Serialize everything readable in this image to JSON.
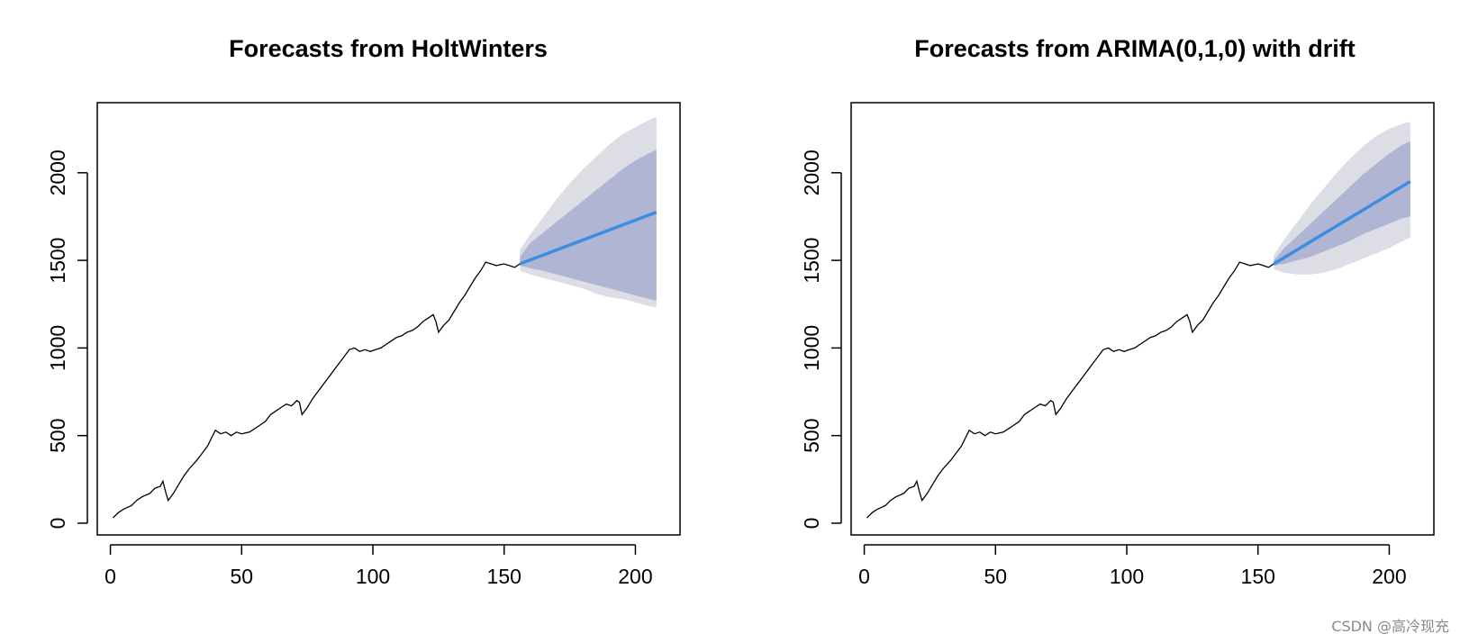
{
  "chart_data": [
    {
      "type": "line",
      "title": "Forecasts from HoltWinters",
      "xlabel": "",
      "ylabel": "",
      "xlim": [
        -5,
        217
      ],
      "ylim": [
        -67,
        2400
      ],
      "x_ticks": [
        0,
        50,
        100,
        150,
        200
      ],
      "y_ticks": [
        0,
        500,
        1000,
        1500,
        2000
      ],
      "grid": false,
      "legend": "none",
      "history": {
        "color": "#000000",
        "points": [
          [
            1,
            30
          ],
          [
            3,
            60
          ],
          [
            5,
            80
          ],
          [
            8,
            100
          ],
          [
            10,
            130
          ],
          [
            12,
            150
          ],
          [
            15,
            170
          ],
          [
            17,
            200
          ],
          [
            19,
            210
          ],
          [
            20,
            240
          ],
          [
            21,
            180
          ],
          [
            22,
            130
          ],
          [
            24,
            170
          ],
          [
            26,
            220
          ],
          [
            28,
            270
          ],
          [
            30,
            310
          ],
          [
            33,
            360
          ],
          [
            35,
            400
          ],
          [
            37,
            440
          ],
          [
            38,
            470
          ],
          [
            40,
            530
          ],
          [
            42,
            510
          ],
          [
            44,
            520
          ],
          [
            46,
            500
          ],
          [
            48,
            520
          ],
          [
            50,
            510
          ],
          [
            53,
            520
          ],
          [
            55,
            540
          ],
          [
            57,
            560
          ],
          [
            59,
            580
          ],
          [
            61,
            620
          ],
          [
            63,
            640
          ],
          [
            65,
            660
          ],
          [
            67,
            680
          ],
          [
            69,
            670
          ],
          [
            71,
            700
          ],
          [
            72,
            690
          ],
          [
            73,
            620
          ],
          [
            75,
            660
          ],
          [
            77,
            710
          ],
          [
            79,
            750
          ],
          [
            81,
            790
          ],
          [
            83,
            830
          ],
          [
            85,
            870
          ],
          [
            87,
            910
          ],
          [
            89,
            950
          ],
          [
            91,
            990
          ],
          [
            93,
            1000
          ],
          [
            95,
            980
          ],
          [
            97,
            990
          ],
          [
            99,
            980
          ],
          [
            101,
            990
          ],
          [
            103,
            1000
          ],
          [
            105,
            1020
          ],
          [
            107,
            1040
          ],
          [
            109,
            1060
          ],
          [
            111,
            1070
          ],
          [
            113,
            1090
          ],
          [
            115,
            1100
          ],
          [
            117,
            1120
          ],
          [
            119,
            1150
          ],
          [
            121,
            1170
          ],
          [
            123,
            1190
          ],
          [
            124,
            1150
          ],
          [
            125,
            1090
          ],
          [
            127,
            1130
          ],
          [
            129,
            1160
          ],
          [
            131,
            1210
          ],
          [
            133,
            1260
          ],
          [
            135,
            1300
          ],
          [
            137,
            1350
          ],
          [
            139,
            1400
          ],
          [
            141,
            1440
          ],
          [
            143,
            1490
          ],
          [
            145,
            1480
          ],
          [
            147,
            1470
          ],
          [
            150,
            1480
          ],
          [
            152,
            1470
          ],
          [
            154,
            1460
          ],
          [
            156,
            1480
          ]
        ]
      },
      "forecast": {
        "color": "#3a8de0",
        "x": [
          156,
          208
        ],
        "mean": [
          1480,
          1775
        ],
        "ci80": {
          "color": "#b1b5d4",
          "x": [
            156,
            160,
            165,
            170,
            175,
            180,
            185,
            190,
            195,
            200,
            205,
            208
          ],
          "lower": [
            1470,
            1455,
            1440,
            1420,
            1400,
            1380,
            1360,
            1340,
            1320,
            1300,
            1280,
            1270
          ],
          "upper": [
            1520,
            1600,
            1660,
            1720,
            1780,
            1840,
            1900,
            1960,
            2020,
            2070,
            2110,
            2130
          ]
        },
        "ci95": {
          "color": "#dcdde5",
          "x": [
            156,
            160,
            165,
            170,
            175,
            180,
            185,
            190,
            195,
            200,
            205,
            208
          ],
          "lower": [
            1440,
            1420,
            1400,
            1380,
            1360,
            1340,
            1310,
            1290,
            1280,
            1260,
            1240,
            1230
          ],
          "upper": [
            1560,
            1650,
            1750,
            1850,
            1940,
            2020,
            2090,
            2160,
            2220,
            2260,
            2300,
            2320
          ]
        }
      }
    },
    {
      "type": "line",
      "title": "Forecasts from ARIMA(0,1,0) with drift",
      "xlabel": "",
      "ylabel": "",
      "xlim": [
        -5,
        217
      ],
      "ylim": [
        -67,
        2400
      ],
      "x_ticks": [
        0,
        50,
        100,
        150,
        200
      ],
      "y_ticks": [
        0,
        500,
        1000,
        1500,
        2000
      ],
      "grid": false,
      "legend": "none",
      "history": {
        "color": "#000000",
        "points": [
          [
            1,
            30
          ],
          [
            3,
            60
          ],
          [
            5,
            80
          ],
          [
            8,
            100
          ],
          [
            10,
            130
          ],
          [
            12,
            150
          ],
          [
            15,
            170
          ],
          [
            17,
            200
          ],
          [
            19,
            210
          ],
          [
            20,
            240
          ],
          [
            21,
            180
          ],
          [
            22,
            130
          ],
          [
            24,
            170
          ],
          [
            26,
            220
          ],
          [
            28,
            270
          ],
          [
            30,
            310
          ],
          [
            33,
            360
          ],
          [
            35,
            400
          ],
          [
            37,
            440
          ],
          [
            38,
            470
          ],
          [
            40,
            530
          ],
          [
            42,
            510
          ],
          [
            44,
            520
          ],
          [
            46,
            500
          ],
          [
            48,
            520
          ],
          [
            50,
            510
          ],
          [
            53,
            520
          ],
          [
            55,
            540
          ],
          [
            57,
            560
          ],
          [
            59,
            580
          ],
          [
            61,
            620
          ],
          [
            63,
            640
          ],
          [
            65,
            660
          ],
          [
            67,
            680
          ],
          [
            69,
            670
          ],
          [
            71,
            700
          ],
          [
            72,
            690
          ],
          [
            73,
            620
          ],
          [
            75,
            660
          ],
          [
            77,
            710
          ],
          [
            79,
            750
          ],
          [
            81,
            790
          ],
          [
            83,
            830
          ],
          [
            85,
            870
          ],
          [
            87,
            910
          ],
          [
            89,
            950
          ],
          [
            91,
            990
          ],
          [
            93,
            1000
          ],
          [
            95,
            980
          ],
          [
            97,
            990
          ],
          [
            99,
            980
          ],
          [
            101,
            990
          ],
          [
            103,
            1000
          ],
          [
            105,
            1020
          ],
          [
            107,
            1040
          ],
          [
            109,
            1060
          ],
          [
            111,
            1070
          ],
          [
            113,
            1090
          ],
          [
            115,
            1100
          ],
          [
            117,
            1120
          ],
          [
            119,
            1150
          ],
          [
            121,
            1170
          ],
          [
            123,
            1190
          ],
          [
            124,
            1150
          ],
          [
            125,
            1090
          ],
          [
            127,
            1130
          ],
          [
            129,
            1160
          ],
          [
            131,
            1210
          ],
          [
            133,
            1260
          ],
          [
            135,
            1300
          ],
          [
            137,
            1350
          ],
          [
            139,
            1400
          ],
          [
            141,
            1440
          ],
          [
            143,
            1490
          ],
          [
            145,
            1480
          ],
          [
            147,
            1470
          ],
          [
            150,
            1480
          ],
          [
            152,
            1470
          ],
          [
            154,
            1460
          ],
          [
            156,
            1480
          ]
        ]
      },
      "forecast": {
        "color": "#3a8de0",
        "x": [
          156,
          208
        ],
        "mean": [
          1480,
          1950
        ],
        "ci80": {
          "color": "#b1b5d4",
          "x": [
            156,
            160,
            165,
            170,
            175,
            180,
            185,
            190,
            195,
            200,
            205,
            208
          ],
          "lower": [
            1470,
            1480,
            1500,
            1520,
            1550,
            1580,
            1610,
            1650,
            1680,
            1710,
            1740,
            1750
          ],
          "upper": [
            1500,
            1570,
            1640,
            1710,
            1780,
            1850,
            1920,
            1990,
            2050,
            2110,
            2160,
            2180
          ]
        },
        "ci95": {
          "color": "#dcdde5",
          "x": [
            156,
            160,
            165,
            170,
            175,
            180,
            185,
            190,
            195,
            200,
            205,
            208
          ],
          "lower": [
            1450,
            1430,
            1420,
            1420,
            1430,
            1450,
            1480,
            1510,
            1540,
            1570,
            1610,
            1630
          ],
          "upper": [
            1530,
            1620,
            1720,
            1820,
            1910,
            2000,
            2080,
            2150,
            2210,
            2250,
            2280,
            2290
          ]
        }
      }
    }
  ],
  "watermark": "CSDN @高冷现充"
}
